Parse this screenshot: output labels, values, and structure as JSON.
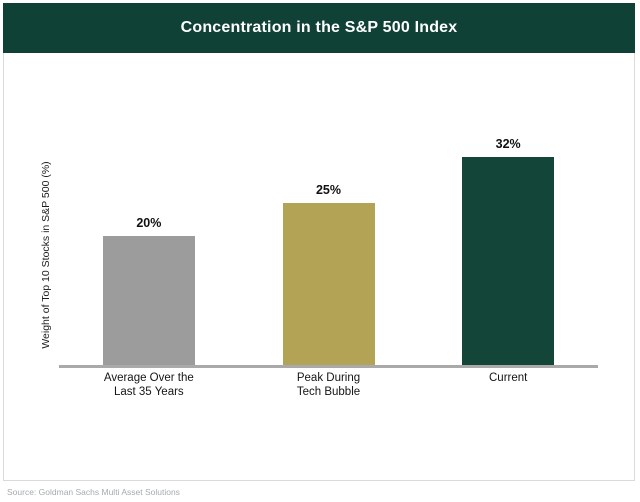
{
  "header": {
    "title": "Concentration in the S&P 500 Index",
    "bg_color": "#0f4136",
    "text_color": "#ffffff"
  },
  "chart_data": {
    "type": "bar",
    "title": "Concentration in the S&P 500 Index",
    "categories": [
      "Average Over the\nLast 35 Years",
      "Peak During\nTech Bubble",
      "Current"
    ],
    "values": [
      20,
      25,
      32
    ],
    "value_labels": [
      "20%",
      "25%",
      "32%"
    ],
    "bar_colors": [
      "#9c9c9c",
      "#b3a355",
      "#134539"
    ],
    "xlabel": "",
    "ylabel": "Weight of Top 10 Stocks in S&P 500 (%)",
    "ylim": [
      0,
      47
    ],
    "grid": false,
    "legend": false,
    "axis_line_color": "#a9a9a9"
  },
  "footer": {
    "source": "Source: Goldman Sachs Multi Asset Solutions"
  }
}
